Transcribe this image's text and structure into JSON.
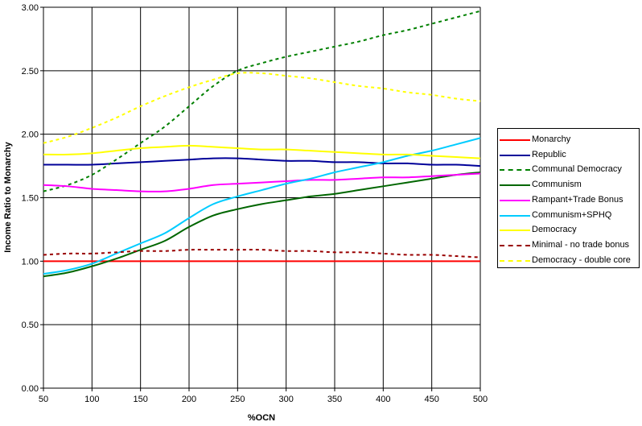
{
  "chart_data": {
    "type": "line",
    "title": "",
    "xlabel": "%OCN",
    "ylabel": "Income Ratio to Monarchy",
    "xlim": [
      50,
      500
    ],
    "ylim": [
      0,
      3
    ],
    "x_ticks": [
      "50",
      "100",
      "150",
      "200",
      "250",
      "300",
      "350",
      "400",
      "450",
      "500"
    ],
    "y_ticks": [
      "0.00",
      "0.50",
      "1.00",
      "1.50",
      "2.00",
      "2.50",
      "3.00"
    ],
    "grid": true,
    "legend_position": "right",
    "x": [
      50,
      75,
      100,
      125,
      150,
      175,
      200,
      225,
      250,
      275,
      300,
      325,
      350,
      375,
      400,
      425,
      450,
      475,
      500
    ],
    "series": [
      {
        "name": "Monarchy",
        "color": "#ff0000",
        "dash": "solid",
        "values": [
          1.0,
          1.0,
          1.0,
          1.0,
          1.0,
          1.0,
          1.0,
          1.0,
          1.0,
          1.0,
          1.0,
          1.0,
          1.0,
          1.0,
          1.0,
          1.0,
          1.0,
          1.0,
          1.0
        ]
      },
      {
        "name": "Republic",
        "color": "#000099",
        "dash": "solid",
        "values": [
          1.76,
          1.76,
          1.76,
          1.77,
          1.78,
          1.79,
          1.8,
          1.81,
          1.81,
          1.8,
          1.79,
          1.79,
          1.78,
          1.78,
          1.77,
          1.77,
          1.76,
          1.76,
          1.75
        ]
      },
      {
        "name": "Communal Democracy",
        "color": "#008000",
        "dash": "dash",
        "values": [
          1.55,
          1.6,
          1.68,
          1.8,
          1.93,
          2.06,
          2.22,
          2.38,
          2.5,
          2.56,
          2.61,
          2.65,
          2.69,
          2.73,
          2.78,
          2.82,
          2.87,
          2.92,
          2.97
        ]
      },
      {
        "name": "Communism",
        "color": "#006600",
        "dash": "solid",
        "values": [
          0.88,
          0.91,
          0.96,
          1.02,
          1.09,
          1.16,
          1.27,
          1.36,
          1.41,
          1.45,
          1.48,
          1.51,
          1.53,
          1.56,
          1.59,
          1.62,
          1.65,
          1.68,
          1.7
        ]
      },
      {
        "name": "Rampant+Trade Bonus",
        "color": "#ff00ff",
        "dash": "solid",
        "values": [
          1.6,
          1.59,
          1.57,
          1.56,
          1.55,
          1.55,
          1.57,
          1.6,
          1.61,
          1.62,
          1.63,
          1.64,
          1.64,
          1.65,
          1.66,
          1.66,
          1.67,
          1.68,
          1.69
        ]
      },
      {
        "name": "Communism+SPHQ",
        "color": "#00ccff",
        "dash": "solid",
        "values": [
          0.9,
          0.93,
          0.98,
          1.06,
          1.14,
          1.22,
          1.34,
          1.45,
          1.51,
          1.56,
          1.61,
          1.65,
          1.7,
          1.74,
          1.78,
          1.83,
          1.87,
          1.92,
          1.97
        ]
      },
      {
        "name": "Democracy",
        "color": "#ffff00",
        "dash": "solid",
        "values": [
          1.84,
          1.84,
          1.85,
          1.87,
          1.89,
          1.9,
          1.91,
          1.9,
          1.89,
          1.88,
          1.88,
          1.87,
          1.86,
          1.85,
          1.84,
          1.84,
          1.83,
          1.82,
          1.81
        ]
      },
      {
        "name": "Minimal - no trade bonus",
        "color": "#990000",
        "dash": "dash",
        "values": [
          1.05,
          1.06,
          1.06,
          1.07,
          1.08,
          1.08,
          1.09,
          1.09,
          1.09,
          1.09,
          1.08,
          1.08,
          1.07,
          1.07,
          1.06,
          1.05,
          1.05,
          1.04,
          1.03
        ]
      },
      {
        "name": "Democracy - double core",
        "color": "#ffff00",
        "dash": "dash",
        "values": [
          1.93,
          1.98,
          2.05,
          2.13,
          2.22,
          2.3,
          2.37,
          2.43,
          2.48,
          2.48,
          2.46,
          2.44,
          2.41,
          2.38,
          2.36,
          2.33,
          2.31,
          2.28,
          2.26
        ]
      }
    ]
  }
}
